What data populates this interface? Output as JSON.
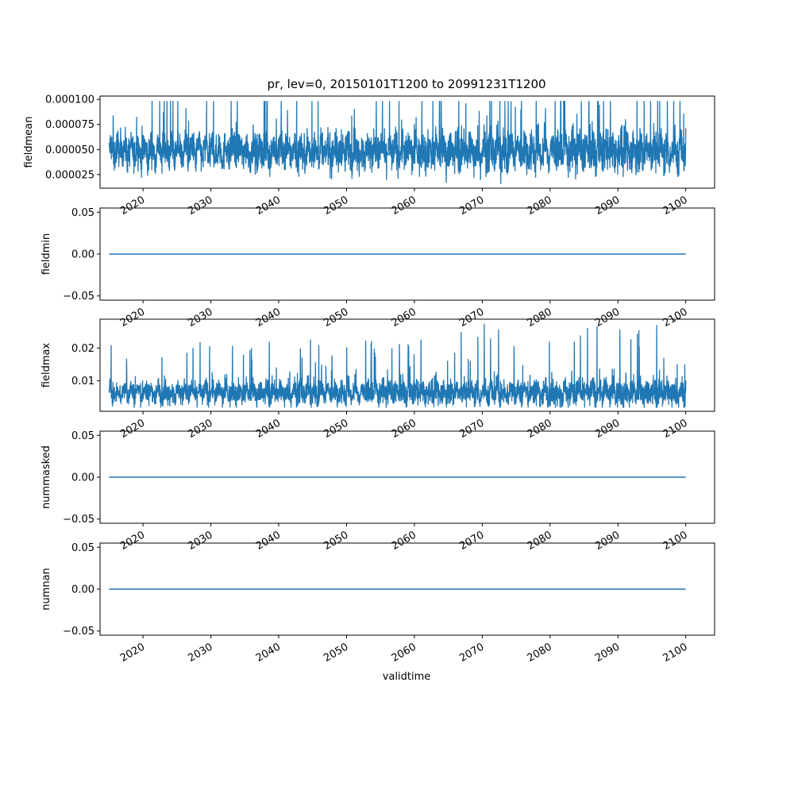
{
  "chart_data": {
    "type": "line",
    "title": "pr, lev=0, 20150101T1200 to 20991231T1200",
    "xlabel": "validtime",
    "x_range": [
      "2015-01-01",
      "2099-12-31"
    ],
    "x_ticks": [
      "2020",
      "2030",
      "2040",
      "2050",
      "2060",
      "2070",
      "2080",
      "2090",
      "2100"
    ],
    "color": "#1f77b4",
    "grid": false,
    "panels": [
      {
        "ylabel": "fieldmean",
        "ylim": [
          1.14e-05,
          0.0001033
        ],
        "yticks": [
          "0.000025",
          "0.000050",
          "0.000075",
          "0.000100"
        ],
        "constant": null,
        "typical_range": [
          3.1e-05,
          6.6e-05
        ],
        "observed_min": 1.6e-05,
        "observed_max": 9.8e-05
      },
      {
        "ylabel": "fieldmin",
        "ylim": [
          -0.055,
          0.055
        ],
        "yticks": [
          "−0.05",
          "0.00",
          "0.05"
        ],
        "constant": 0.0
      },
      {
        "ylabel": "fieldmax",
        "ylim": [
          0.0007,
          0.0288
        ],
        "yticks": [
          "0.01",
          "0.02"
        ],
        "constant": null,
        "typical_range": [
          0.003,
          0.01
        ],
        "observed_min": 0.0019,
        "observed_max": 0.0276
      },
      {
        "ylabel": "nummasked",
        "ylim": [
          -0.055,
          0.055
        ],
        "yticks": [
          "−0.05",
          "0.00",
          "0.05"
        ],
        "constant": 0.0
      },
      {
        "ylabel": "numnan",
        "ylim": [
          -0.055,
          0.055
        ],
        "yticks": [
          "−0.05",
          "0.00",
          "0.05"
        ],
        "constant": 0.0
      }
    ]
  }
}
